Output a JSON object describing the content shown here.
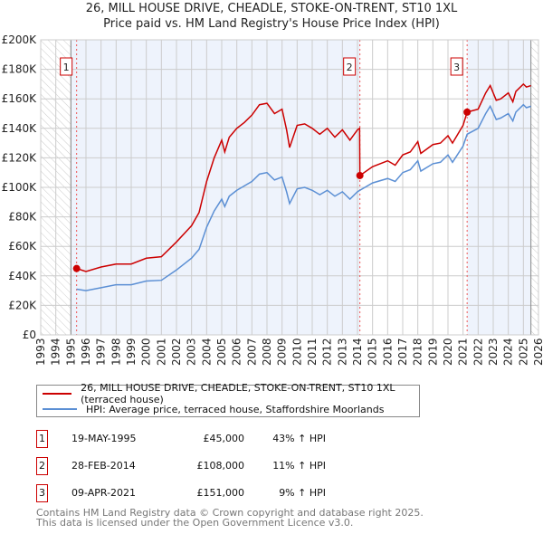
{
  "title_line1": "26, MILL HOUSE DRIVE, CHEADLE, STOKE-ON-TRENT, ST10 1XL",
  "title_line2": "Price paid vs. HM Land Registry's House Price Index (HPI)",
  "legend": {
    "property": "26, MILL HOUSE DRIVE, CHEADLE, STOKE-ON-TRENT, ST10 1XL (terraced house)",
    "hpi": "HPI: Average price, terraced house, Staffordshire Moorlands"
  },
  "sales": [
    {
      "num": "1",
      "date": "19-MAY-1995",
      "price": "£45,000",
      "pct": "43% ↑ HPI",
      "x": 1995.38,
      "value": 45
    },
    {
      "num": "2",
      "date": "28-FEB-2014",
      "price": "£108,000",
      "pct": "11% ↑ HPI",
      "x": 2014.16,
      "value": 108
    },
    {
      "num": "3",
      "date": "09-APR-2021",
      "price": "£151,000",
      "pct": "9% ↑ HPI",
      "x": 2021.27,
      "value": 151
    }
  ],
  "footer_line1": "Contains HM Land Registry data © Crown copyright and database right 2025.",
  "footer_line2": "This data is licensed under the Open Government Licence v3.0.",
  "colors": {
    "property": "#cc0000",
    "hpi": "#5b8fd4",
    "band": "#eef3fc"
  },
  "chart_data": {
    "type": "line",
    "xlim": [
      1993,
      2026
    ],
    "ylim": [
      0,
      200
    ],
    "yunit": "£K",
    "x_ticks": [
      "1993",
      "1994",
      "1995",
      "1996",
      "1997",
      "1998",
      "1999",
      "2000",
      "2001",
      "2002",
      "2003",
      "2004",
      "2005",
      "2006",
      "2007",
      "2008",
      "2009",
      "2010",
      "2011",
      "2012",
      "2013",
      "2014",
      "2015",
      "2016",
      "2017",
      "2018",
      "2019",
      "2020",
      "2021",
      "2022",
      "2023",
      "2024",
      "2025",
      "2026"
    ],
    "y_ticks": [
      "£0",
      "£20K",
      "£40K",
      "£60K",
      "£80K",
      "£100K",
      "£120K",
      "£140K",
      "£160K",
      "£180K",
      "£200K"
    ],
    "data_range": [
      1995,
      2025.5
    ],
    "series": [
      {
        "name": "property",
        "x": [
          1995.38,
          1996,
          1997,
          1998,
          1999,
          2000,
          2001,
          2002,
          2003,
          2003.5,
          2004,
          2004.5,
          2005,
          2005.2,
          2005.5,
          2006,
          2006.5,
          2007,
          2007.5,
          2008,
          2008.5,
          2009,
          2009.3,
          2009.5,
          2010,
          2010.5,
          2011,
          2011.5,
          2012,
          2012.5,
          2013,
          2013.5,
          2014,
          2014.14,
          2014.16,
          2015,
          2016,
          2016.5,
          2017,
          2017.5,
          2018,
          2018.2,
          2019,
          2019.5,
          2020,
          2020.3,
          2021,
          2021.27,
          2022,
          2022.5,
          2022.8,
          2023.2,
          2023.5,
          2024,
          2024.3,
          2024.5,
          2025,
          2025.2,
          2025.5
        ],
        "values": [
          45,
          43,
          46,
          48,
          48,
          52,
          53,
          63,
          74,
          83,
          104,
          120,
          132,
          124,
          134,
          140,
          144,
          149,
          156,
          157,
          150,
          153,
          139,
          127,
          142,
          143,
          140,
          136,
          140,
          134,
          139,
          132,
          139,
          140,
          108,
          114,
          118,
          115,
          122,
          124,
          131,
          123,
          129,
          130,
          135,
          130,
          142,
          151,
          153,
          164,
          169,
          159,
          160,
          164,
          158,
          165,
          170,
          168,
          169
        ]
      },
      {
        "name": "hpi",
        "x": [
          1995.38,
          1996,
          1997,
          1998,
          1999,
          2000,
          2001,
          2002,
          2003,
          2003.5,
          2004,
          2004.5,
          2005,
          2005.2,
          2005.5,
          2006,
          2006.5,
          2007,
          2007.5,
          2008,
          2008.5,
          2009,
          2009.3,
          2009.5,
          2010,
          2010.5,
          2011,
          2011.5,
          2012,
          2012.5,
          2013,
          2013.5,
          2014,
          2014.16,
          2015,
          2016,
          2016.5,
          2017,
          2017.5,
          2018,
          2018.2,
          2019,
          2019.5,
          2020,
          2020.3,
          2021,
          2021.27,
          2022,
          2022.5,
          2022.8,
          2023.2,
          2023.5,
          2024,
          2024.3,
          2024.5,
          2025,
          2025.2,
          2025.5
        ],
        "values": [
          31,
          30,
          32,
          34,
          34,
          36.5,
          37,
          44,
          52,
          58,
          73,
          84,
          92,
          87,
          94,
          98,
          101,
          104,
          109,
          110,
          105,
          107,
          97,
          89,
          99,
          100,
          98,
          95,
          98,
          94,
          97,
          92,
          97,
          98,
          103,
          106,
          104,
          110,
          112,
          118,
          111,
          116,
          117,
          122,
          117,
          128,
          136,
          140,
          150,
          155,
          146,
          147,
          150,
          145,
          151,
          156,
          154,
          155
        ]
      }
    ]
  }
}
